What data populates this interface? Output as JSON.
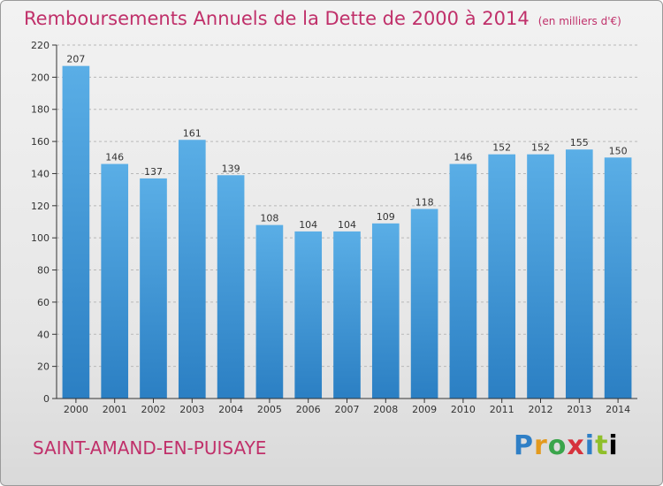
{
  "header": {
    "title": "Remboursements Annuels de la Dette de 2000 à 2014",
    "subtitle": "(en milliers d'€)"
  },
  "footer": {
    "commune": "SAINT-AMAND-EN-PUISAYE",
    "logo": "Proxiti"
  },
  "colors": {
    "bar_top": "#5aaee6",
    "bar_bottom": "#2b7fc3",
    "title": "#c0306a",
    "axis": "#333333"
  },
  "chart_data": {
    "type": "bar",
    "title": "Remboursements Annuels de la Dette de 2000 à 2014",
    "subtitle": "(en milliers d'€)",
    "categories": [
      "2000",
      "2001",
      "2002",
      "2003",
      "2004",
      "2005",
      "2006",
      "2007",
      "2008",
      "2009",
      "2010",
      "2011",
      "2012",
      "2013",
      "2014"
    ],
    "values": [
      207,
      146,
      137,
      161,
      139,
      108,
      104,
      104,
      109,
      118,
      146,
      152,
      152,
      155,
      150
    ],
    "xlabel": "",
    "ylabel": "",
    "ylim": [
      0,
      220
    ],
    "yticks": [
      0,
      20,
      40,
      60,
      80,
      100,
      120,
      140,
      160,
      180,
      200,
      220
    ],
    "grid": "horizontal dashed",
    "data_labels": true
  }
}
